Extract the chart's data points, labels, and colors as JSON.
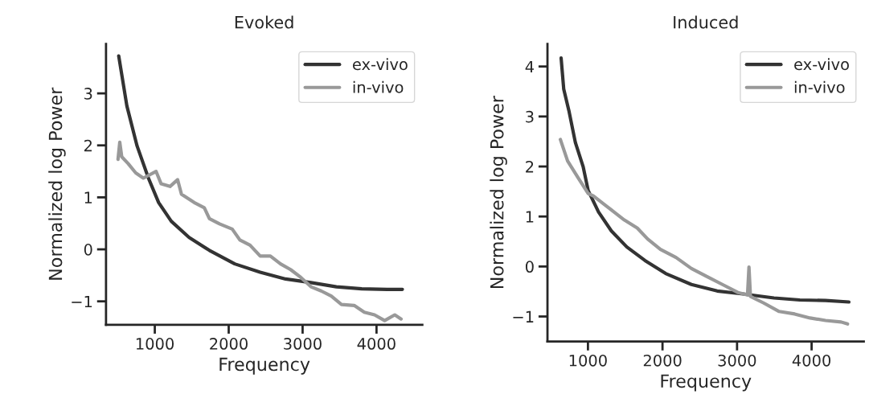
{
  "chart_data": [
    {
      "type": "line",
      "title": "Evoked",
      "xlabel": "Frequency",
      "ylabel": "Normalized log Power",
      "xlim": [
        340,
        4620
      ],
      "ylim": [
        -1.45,
        3.95
      ],
      "xticks": [
        1000,
        2000,
        3000,
        4000
      ],
      "yticks": [
        -1,
        0,
        1,
        2,
        3
      ],
      "legend": "top right",
      "series": [
        {
          "name": "ex-vivo",
          "color": "#333333",
          "x": [
            512,
            622,
            760,
            914,
            1052,
            1223,
            1464,
            1739,
            2082,
            2426,
            2770,
            3113,
            3457,
            3800,
            4144,
            4350
          ],
          "values": [
            3.72,
            2.76,
            1.99,
            1.37,
            0.9,
            0.54,
            0.23,
            -0.02,
            -0.28,
            -0.44,
            -0.57,
            -0.64,
            -0.72,
            -0.76,
            -0.77,
            -0.77
          ]
        },
        {
          "name": "in-vivo",
          "color": "#999999",
          "x": [
            502,
            526,
            553,
            639,
            742,
            845,
            1017,
            1086,
            1206,
            1309,
            1361,
            1533,
            1670,
            1739,
            1876,
            2048,
            2151,
            2289,
            2426,
            2564,
            2701,
            2838,
            2976,
            3113,
            3251,
            3388,
            3526,
            3698,
            3835,
            3973,
            4110,
            4247,
            4333
          ],
          "values": [
            1.73,
            2.06,
            1.78,
            1.65,
            1.47,
            1.37,
            1.5,
            1.26,
            1.21,
            1.34,
            1.06,
            0.9,
            0.8,
            0.59,
            0.49,
            0.39,
            0.18,
            0.08,
            -0.13,
            -0.13,
            -0.28,
            -0.39,
            -0.54,
            -0.72,
            -0.8,
            -0.9,
            -1.06,
            -1.08,
            -1.21,
            -1.26,
            -1.37,
            -1.26,
            -1.34
          ]
        }
      ]
    },
    {
      "type": "line",
      "title": "Induced",
      "xlabel": "Frequency",
      "ylabel": "Normalized log Power",
      "xlim": [
        457,
        4700
      ],
      "ylim": [
        -1.5,
        4.45
      ],
      "xticks": [
        1000,
        2000,
        3000,
        4000
      ],
      "yticks": [
        -1,
        0,
        1,
        2,
        3,
        4
      ],
      "legend": "top right",
      "series": [
        {
          "name": "ex-vivo",
          "color": "#333333",
          "x": [
            640,
            675,
            744,
            831,
            935,
            1003,
            1142,
            1315,
            1522,
            1765,
            2042,
            2388,
            2734,
            3080,
            3495,
            3842,
            4188,
            4500
          ],
          "values": [
            4.17,
            3.55,
            3.12,
            2.48,
            2.0,
            1.52,
            1.09,
            0.71,
            0.39,
            0.12,
            -0.14,
            -0.36,
            -0.49,
            -0.55,
            -0.63,
            -0.67,
            -0.68,
            -0.71
          ]
        },
        {
          "name": "in-vivo",
          "color": "#999999",
          "x": [
            630,
            727,
            865,
            1003,
            1073,
            1211,
            1350,
            1488,
            1661,
            1800,
            1973,
            2181,
            2388,
            2596,
            2804,
            3011,
            3140,
            3160,
            3180,
            3357,
            3565,
            3773,
            3980,
            4188,
            4396,
            4482
          ],
          "values": [
            2.54,
            2.11,
            1.78,
            1.46,
            1.41,
            1.25,
            1.09,
            0.93,
            0.77,
            0.55,
            0.34,
            0.18,
            -0.04,
            -0.2,
            -0.36,
            -0.52,
            -0.57,
            -0.01,
            -0.6,
            -0.73,
            -0.9,
            -0.95,
            -1.03,
            -1.08,
            -1.11,
            -1.15
          ]
        }
      ]
    }
  ]
}
